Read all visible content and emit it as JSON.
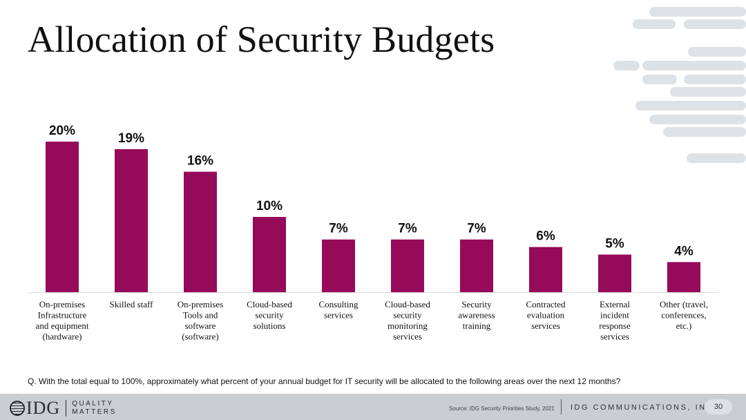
{
  "title": "Allocation of Security Budgets",
  "question": "Q. With the total equal to 100%, approximately what percent of your annual budget for IT security will be allocated to the following areas over the next 12 months?",
  "footer": {
    "brand": "IDG",
    "tagline_line1": "QUALITY",
    "tagline_line2": "MATTERS",
    "source": "Source: IDG Security Priorities Study, 2021",
    "company": "IDG COMMUNICATIONS, INC.",
    "page_number": "30"
  },
  "colors": {
    "bar": "#960a5a",
    "axis": "#d9d9d9",
    "footer_bg": "#c9ced2",
    "decoration": "#dde2e6"
  },
  "chart_data": {
    "type": "bar",
    "categories": [
      [
        "On-premises",
        "Infrastructure",
        "and equipment",
        "(hardware)"
      ],
      [
        "Skilled staff"
      ],
      [
        "On-premises",
        "Tools and",
        "software",
        "(software)"
      ],
      [
        "Cloud-based",
        "security",
        "solutions"
      ],
      [
        "Consulting",
        "services"
      ],
      [
        "Cloud-based",
        "security",
        "monitoring",
        "services"
      ],
      [
        "Security",
        "awareness",
        "training"
      ],
      [
        "Contracted",
        "evaluation",
        "services"
      ],
      [
        "External",
        "incident",
        "response",
        "services"
      ],
      [
        "Other (travel,",
        "conferences,",
        "etc.)"
      ]
    ],
    "values": [
      20,
      19,
      16,
      10,
      7,
      7,
      7,
      6,
      5,
      4
    ],
    "data_labels": [
      "20%",
      "19%",
      "16%",
      "10%",
      "7%",
      "7%",
      "7%",
      "6%",
      "5%",
      "4%"
    ],
    "ylim": [
      0,
      20
    ],
    "grid": false,
    "legend": "none"
  }
}
